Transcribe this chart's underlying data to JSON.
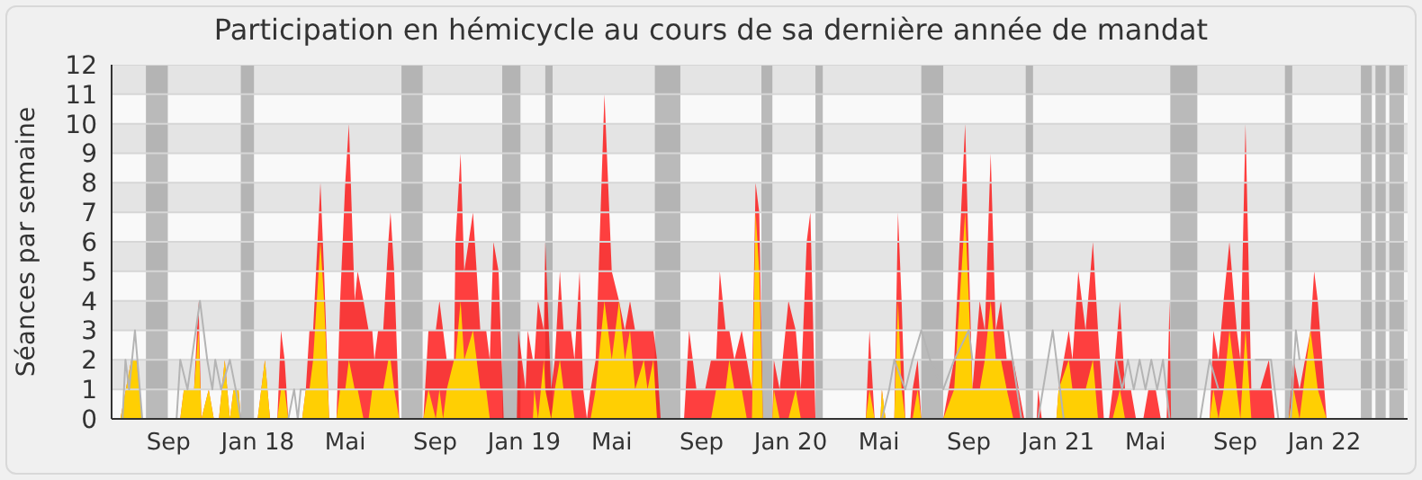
{
  "chart_data": {
    "type": "area",
    "title": "Participation en hémicycle au cours de sa dernière année de mandat",
    "ylabel": "Séances par semaine",
    "x": [
      "2017-06-15",
      "2017-06-27",
      "2017-07-12",
      "2017-07-19",
      "2017-07-27",
      "2017-09-17",
      "2017-09-22",
      "2017-10-03",
      "2017-10-06",
      "2017-10-12",
      "2017-10-16",
      "2017-10-26",
      "2017-11-02",
      "2017-11-09",
      "2017-11-17",
      "2017-11-24",
      "2017-11-29",
      "2017-12-06",
      "2017-12-09",
      "2018-01-01",
      "2018-01-11",
      "2018-01-18",
      "2018-01-28",
      "2018-02-02",
      "2018-02-07",
      "2018-02-12",
      "2018-03-03",
      "2018-03-08",
      "2018-03-13",
      "2018-03-18",
      "2018-03-28",
      "2018-04-02",
      "2018-04-09",
      "2018-04-19",
      "2018-04-24",
      "2018-05-01",
      "2018-05-06",
      "2018-05-14",
      "2018-05-18",
      "2018-05-26",
      "2018-06-02",
      "2018-06-07",
      "2018-06-10",
      "2018-06-15",
      "2018-06-22",
      "2018-06-29",
      "2018-07-02",
      "2018-07-07",
      "2018-07-14",
      "2018-08-16",
      "2018-08-23",
      "2018-09-02",
      "2018-09-07",
      "2018-09-12",
      "2018-09-17",
      "2018-09-27",
      "2018-09-29",
      "2018-10-06",
      "2018-10-11",
      "2018-10-23",
      "2018-11-02",
      "2018-11-10",
      "2018-11-15",
      "2018-11-20",
      "2018-11-27",
      "2018-12-04",
      "2018-12-22",
      "2018-12-24",
      "2019-01-03",
      "2019-01-06",
      "2019-01-13",
      "2019-01-15",
      "2019-01-20",
      "2019-01-28",
      "2019-01-30",
      "2019-02-07",
      "2019-02-12",
      "2019-02-19",
      "2019-02-24",
      "2019-03-06",
      "2019-03-11",
      "2019-03-18",
      "2019-03-23",
      "2019-03-28",
      "2019-04-02",
      "2019-04-09",
      "2019-04-21",
      "2019-05-01",
      "2019-05-11",
      "2019-05-19",
      "2019-05-26",
      "2019-06-02",
      "2019-06-14",
      "2019-06-19",
      "2019-06-27",
      "2019-07-02",
      "2019-07-07",
      "2019-08-08",
      "2019-08-15",
      "2019-08-25",
      "2019-09-06",
      "2019-09-14",
      "2019-09-21",
      "2019-09-26",
      "2019-10-04",
      "2019-10-09",
      "2019-10-16",
      "2019-10-26",
      "2019-11-02",
      "2019-11-09",
      "2019-11-14",
      "2019-11-19",
      "2019-11-24",
      "2019-12-07",
      "2019-12-09",
      "2019-12-17",
      "2019-12-29",
      "2020-01-08",
      "2020-01-15",
      "2020-01-23",
      "2020-01-28",
      "2020-02-04",
      "2020-04-13",
      "2020-04-18",
      "2020-04-25",
      "2020-05-03",
      "2020-05-05",
      "2020-05-10",
      "2020-05-22",
      "2020-05-27",
      "2020-06-01",
      "2020-06-06",
      "2020-06-13",
      "2020-06-16",
      "2020-06-23",
      "2020-06-28",
      "2020-07-28",
      "2020-08-12",
      "2020-08-27",
      "2020-09-06",
      "2020-09-16",
      "2020-09-23",
      "2020-10-01",
      "2020-10-08",
      "2020-10-15",
      "2020-10-23",
      "2020-11-01",
      "2020-11-16",
      "2020-12-03",
      "2020-12-05",
      "2020-12-10",
      "2020-12-30",
      "2021-01-02",
      "2021-01-16",
      "2021-01-21",
      "2021-01-29",
      "2021-02-03",
      "2021-02-08",
      "2021-02-18",
      "2021-02-25",
      "2021-03-05",
      "2021-03-12",
      "2021-03-17",
      "2021-03-27",
      "2021-04-03",
      "2021-04-11",
      "2021-04-18",
      "2021-04-28",
      "2021-05-05",
      "2021-05-15",
      "2021-05-22",
      "2021-05-30",
      "2021-06-03",
      "2021-06-05",
      "2021-07-28",
      "2021-08-02",
      "2021-08-09",
      "2021-08-16",
      "2021-08-24",
      "2021-09-03",
      "2021-09-08",
      "2021-09-15",
      "2021-09-23",
      "2021-10-05",
      "2021-10-17",
      "2021-10-25",
      "2021-11-13",
      "2021-11-20",
      "2021-11-28",
      "2021-12-13",
      "2021-12-18",
      "2021-12-23",
      "2022-01-04",
      "2022-04-25"
    ],
    "series": [
      {
        "type": "line",
        "color": "#b4b4b4",
        "x": [
          "2017-06-15",
          "2017-06-30",
          "2017-07-04",
          "2017-07-09",
          "2017-07-17",
          "2017-07-27",
          "2017-09-12",
          "2017-09-17",
          "2017-09-27",
          "2017-10-14",
          "2017-10-24",
          "2017-10-31",
          "2017-11-04",
          "2017-11-12",
          "2017-11-24",
          "2017-12-02",
          "2017-12-09",
          "2018-02-12",
          "2018-02-20",
          "2018-02-25",
          "2018-03-01",
          "2018-03-08",
          "2018-03-20",
          "2019-09-20",
          "2020-05-05",
          "2020-05-15",
          "2020-05-22",
          "2020-06-06",
          "2020-06-16",
          "2020-06-28",
          "2020-07-10",
          "2020-07-28",
          "2020-08-12",
          "2020-09-01",
          "2020-09-06",
          "2020-09-12",
          "2020-10-25",
          "2020-11-12",
          "2020-12-05",
          "2020-12-25",
          "2021-01-09",
          "2021-02-10",
          "2021-03-22",
          "2021-03-30",
          "2021-04-07",
          "2021-04-15",
          "2021-04-23",
          "2021-05-01",
          "2021-05-09",
          "2021-05-17",
          "2021-05-25",
          "2021-06-03",
          "2021-07-15",
          "2021-07-28",
          "2021-08-09",
          "2021-08-20",
          "2021-09-28",
          "2021-10-10",
          "2021-10-20",
          "2021-10-30",
          "2021-11-16",
          "2021-11-23",
          "2021-11-28"
        ],
        "values": [
          0,
          0,
          2,
          1,
          3,
          0,
          0,
          2,
          1,
          4,
          2,
          1,
          2,
          1,
          2,
          1,
          0,
          0,
          1,
          0,
          1,
          1,
          null,
          null,
          0,
          1,
          2,
          1,
          2,
          3,
          2,
          1,
          2,
          3,
          2,
          null,
          3,
          0,
          0,
          3,
          0,
          null,
          2,
          1,
          2,
          1,
          2,
          1,
          2,
          1,
          2,
          0,
          0,
          2,
          1,
          null,
          2,
          2,
          2,
          0,
          0,
          3,
          2
        ]
      },
      {
        "color": "#ff0000",
        "values": [
          0,
          0,
          2,
          2,
          0,
          0,
          1,
          1,
          1,
          4,
          0,
          1,
          0,
          0,
          2,
          0,
          1,
          1,
          0,
          0,
          2,
          0,
          0,
          3,
          2,
          0,
          0,
          1,
          3,
          3,
          8,
          5,
          0,
          0,
          4,
          8,
          10,
          4,
          5,
          4,
          3,
          3,
          2,
          3,
          3,
          6,
          7,
          5,
          0,
          0,
          3,
          3,
          4,
          3,
          2,
          2,
          6,
          9,
          5,
          7,
          3,
          3,
          2,
          6,
          5,
          0,
          0,
          3,
          1,
          3,
          2,
          2,
          4,
          3,
          6,
          1,
          2,
          5,
          3,
          3,
          2,
          5,
          1,
          0,
          1,
          2,
          11,
          5,
          4,
          3,
          4,
          3,
          3,
          3,
          3,
          2,
          0,
          0,
          3,
          1,
          1,
          2,
          2,
          5,
          3,
          3,
          2,
          3,
          2,
          1,
          8,
          7,
          0,
          0,
          2,
          1,
          4,
          3,
          1,
          6,
          7,
          0,
          0,
          3,
          0,
          0,
          1,
          0,
          0,
          7,
          4,
          0,
          0,
          1,
          2,
          0,
          0,
          2,
          10,
          1,
          4,
          3,
          9,
          3,
          4,
          2,
          2,
          0,
          0,
          1,
          0,
          0,
          1,
          3,
          2,
          5,
          4,
          3,
          6,
          3,
          0,
          0,
          1,
          4,
          1,
          1,
          0,
          0,
          1,
          1,
          0,
          0,
          4,
          0,
          0,
          3,
          2,
          4,
          6,
          3,
          2,
          10,
          1,
          1,
          2,
          0,
          0,
          2,
          1,
          3,
          5,
          4,
          0,
          0
        ]
      },
      {
        "color": "#ffd700",
        "values": [
          0,
          0,
          2,
          2,
          0,
          0,
          1,
          1,
          1,
          3,
          0,
          1,
          0,
          0,
          2,
          0,
          1,
          1,
          0,
          0,
          2,
          0,
          0,
          1,
          1,
          0,
          0,
          1,
          1,
          2,
          6,
          4,
          0,
          0,
          1,
          1,
          2,
          1,
          1,
          0,
          0,
          1,
          1,
          1,
          1,
          2,
          2,
          1,
          0,
          0,
          1,
          0,
          1,
          0,
          1,
          2,
          2,
          4,
          2,
          3,
          1,
          1,
          0,
          0,
          0,
          0,
          0,
          0,
          0,
          0,
          0,
          1,
          0,
          2,
          1,
          0,
          1,
          2,
          1,
          1,
          0,
          0,
          0,
          0,
          0,
          1,
          4,
          2,
          4,
          2,
          3,
          1,
          2,
          1,
          2,
          0,
          0,
          0,
          0,
          0,
          0,
          0,
          1,
          1,
          1,
          2,
          1,
          1,
          0,
          0,
          7,
          5,
          0,
          0,
          1,
          0,
          0,
          1,
          0,
          0,
          0,
          0,
          0,
          1,
          0,
          0,
          1,
          0,
          0,
          4,
          1,
          0,
          0,
          0,
          1,
          0,
          0,
          1,
          7,
          1,
          1,
          2,
          4,
          2,
          2,
          1,
          0,
          0,
          0,
          0,
          0,
          0,
          1,
          2,
          1,
          1,
          1,
          1,
          2,
          0,
          0,
          0,
          0,
          1,
          0,
          0,
          0,
          0,
          0,
          0,
          0,
          0,
          0,
          0,
          0,
          1,
          0,
          1,
          3,
          1,
          0,
          3,
          0,
          0,
          0,
          0,
          0,
          1,
          0,
          3,
          2,
          1,
          0,
          0
        ]
      }
    ],
    "xlim": [
      "2017-06-15",
      "2022-04-25"
    ],
    "xticks": [
      {
        "value": "2017-09-01",
        "label": "Sep"
      },
      {
        "value": "2018-01-01",
        "label": "Jan 18"
      },
      {
        "value": "2018-05-01",
        "label": "Mai"
      },
      {
        "value": "2018-09-01",
        "label": "Sep"
      },
      {
        "value": "2019-01-01",
        "label": "Jan 19"
      },
      {
        "value": "2019-05-01",
        "label": "Mai"
      },
      {
        "value": "2019-09-01",
        "label": "Sep"
      },
      {
        "value": "2020-01-01",
        "label": "Jan 20"
      },
      {
        "value": "2020-05-01",
        "label": "Mai"
      },
      {
        "value": "2020-09-01",
        "label": "Sep"
      },
      {
        "value": "2021-01-01",
        "label": "Jan 21"
      },
      {
        "value": "2021-05-01",
        "label": "Mai"
      },
      {
        "value": "2021-09-01",
        "label": "Sep"
      },
      {
        "value": "2022-01-01",
        "label": "Jan 22"
      }
    ],
    "ylim": [
      0,
      12
    ],
    "yticks": [
      0,
      1,
      2,
      3,
      4,
      5,
      6,
      7,
      8,
      9,
      10,
      11,
      12
    ],
    "bands": [
      {
        "axis": "x",
        "from": "2017-08-01",
        "to": "2017-08-31",
        "color": "#a0a0a0"
      },
      {
        "axis": "x",
        "from": "2017-12-09",
        "to": "2017-12-27",
        "color": "#a0a0a0"
      },
      {
        "axis": "x",
        "from": "2018-07-17",
        "to": "2018-08-15",
        "color": "#a0a0a0"
      },
      {
        "axis": "x",
        "from": "2018-12-02",
        "to": "2018-12-27",
        "color": "#a0a0a0"
      },
      {
        "axis": "x",
        "from": "2019-01-30",
        "to": "2019-02-09",
        "color": "#a0a0a0"
      },
      {
        "axis": "x",
        "from": "2019-06-29",
        "to": "2019-08-03",
        "color": "#a0a0a0"
      },
      {
        "axis": "x",
        "from": "2019-11-22",
        "to": "2019-12-07",
        "color": "#a0a0a0"
      },
      {
        "axis": "x",
        "from": "2020-02-04",
        "to": "2020-02-14",
        "color": "#a0a0a0"
      },
      {
        "axis": "x",
        "from": "2020-06-28",
        "to": "2020-07-28",
        "color": "#a0a0a0"
      },
      {
        "axis": "x",
        "from": "2020-11-18",
        "to": "2020-11-28",
        "color": "#a0a0a0"
      },
      {
        "axis": "x",
        "from": "2021-06-04",
        "to": "2021-07-11",
        "color": "#a0a0a0"
      },
      {
        "axis": "x",
        "from": "2021-11-08",
        "to": "2021-11-18",
        "color": "#a0a0a0"
      },
      {
        "axis": "x",
        "from": "2022-02-20",
        "to": "2022-03-07",
        "color": "#a0a0a0"
      },
      {
        "axis": "x",
        "from": "2022-03-12",
        "to": "2022-03-26",
        "color": "#a0a0a0"
      },
      {
        "axis": "x",
        "from": "2022-03-31",
        "to": "2022-04-20",
        "color": "#a0a0a0"
      }
    ],
    "grid": "y",
    "marker": "none"
  }
}
